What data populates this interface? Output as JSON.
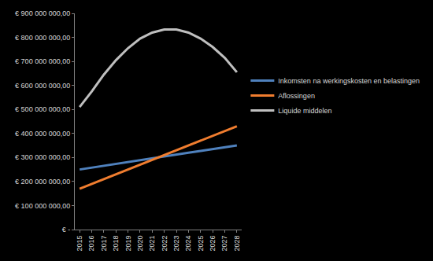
{
  "chart_data": {
    "type": "line",
    "categories": [
      "2015",
      "2016",
      "2017",
      "2018",
      "2019",
      "2020",
      "2021",
      "2022",
      "2023",
      "2024",
      "2025",
      "2026",
      "2027",
      "2028"
    ],
    "series": [
      {
        "name": "Inkomsten na werkingskosten en belastingen",
        "color": "#4f81bd",
        "values": [
          250000000,
          258000000,
          266000000,
          273000000,
          281000000,
          289000000,
          297000000,
          304000000,
          312000000,
          320000000,
          327000000,
          335000000,
          343000000,
          350000000
        ]
      },
      {
        "name": "Aflossingen",
        "color": "#f07d2f",
        "values": [
          170000000,
          190000000,
          210000000,
          230000000,
          250000000,
          270000000,
          290000000,
          310000000,
          330000000,
          350000000,
          370000000,
          390000000,
          410000000,
          430000000
        ]
      },
      {
        "name": "Liquide middelen",
        "color": "#bfbfbf",
        "values": [
          510000000,
          575000000,
          645000000,
          705000000,
          755000000,
          795000000,
          820000000,
          833000000,
          833000000,
          820000000,
          795000000,
          760000000,
          715000000,
          655000000
        ]
      }
    ],
    "ylim": [
      0,
      900000000
    ],
    "yticks": [
      {
        "value": 0,
        "label": "€ -"
      },
      {
        "value": 100000000,
        "label": "€ 100 000 000,00"
      },
      {
        "value": 200000000,
        "label": "€ 200 000 000,00"
      },
      {
        "value": 300000000,
        "label": "€ 300 000 000,00"
      },
      {
        "value": 400000000,
        "label": "€ 400 000 000,00"
      },
      {
        "value": 500000000,
        "label": "€ 500 000 000,00"
      },
      {
        "value": 600000000,
        "label": "€ 600 000 000,00"
      },
      {
        "value": 700000000,
        "label": "€ 700 000 000,00"
      },
      {
        "value": 800000000,
        "label": "€ 800 000 000,00"
      },
      {
        "value": 900000000,
        "label": "€ 900 000 000,00"
      }
    ],
    "grid": false,
    "legend": "right"
  }
}
